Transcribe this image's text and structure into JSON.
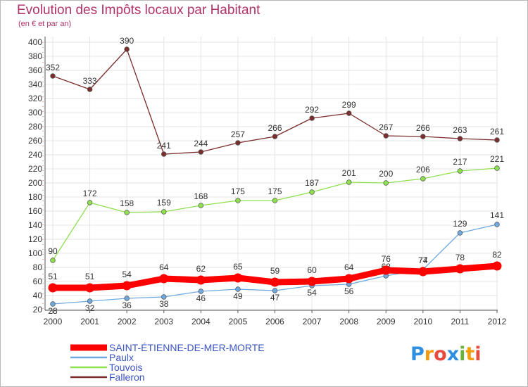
{
  "chart_data": {
    "type": "line",
    "title": "Evolution des Impôts locaux par Habitant",
    "subtitle": "(en € et par an)",
    "x": [
      "2000",
      "2001",
      "2002",
      "2003",
      "2004",
      "2005",
      "2006",
      "2007",
      "2008",
      "2009",
      "2010",
      "2011",
      "2012"
    ],
    "yticks": [
      20,
      40,
      60,
      80,
      100,
      120,
      140,
      160,
      180,
      200,
      220,
      240,
      260,
      280,
      300,
      320,
      340,
      360,
      380,
      400
    ],
    "ylim": [
      20,
      400
    ],
    "grid": true,
    "legend_position": "bottom",
    "series": [
      {
        "name": "SAINT-ÉTIENNE-DE-MER-MORTE",
        "color": "#ff0000",
        "values": [
          51,
          51,
          54,
          64,
          62,
          65,
          59,
          60,
          64,
          76,
          74,
          78,
          82
        ]
      },
      {
        "name": "Paulx",
        "color": "#6fa8dc",
        "values": [
          28,
          32,
          36,
          38,
          46,
          49,
          47,
          54,
          56,
          68,
          77,
          129,
          141
        ]
      },
      {
        "name": "Touvois",
        "color": "#8ee04e",
        "values": [
          90,
          172,
          158,
          159,
          168,
          175,
          175,
          187,
          201,
          200,
          206,
          217,
          221
        ]
      },
      {
        "name": "Falleron",
        "color": "#7b2c2c",
        "values": [
          352,
          333,
          390,
          241,
          244,
          257,
          266,
          292,
          299,
          267,
          266,
          263,
          261
        ]
      }
    ]
  },
  "logo": {
    "letters": [
      "P",
      "r",
      "o",
      "x",
      "i",
      "t",
      "i"
    ],
    "colors": [
      "#2f8fe0",
      "#f39c12",
      "#e74c3c",
      "#2f8fe0",
      "#6ab23a",
      "#f39c12",
      "#e74c3c"
    ]
  }
}
